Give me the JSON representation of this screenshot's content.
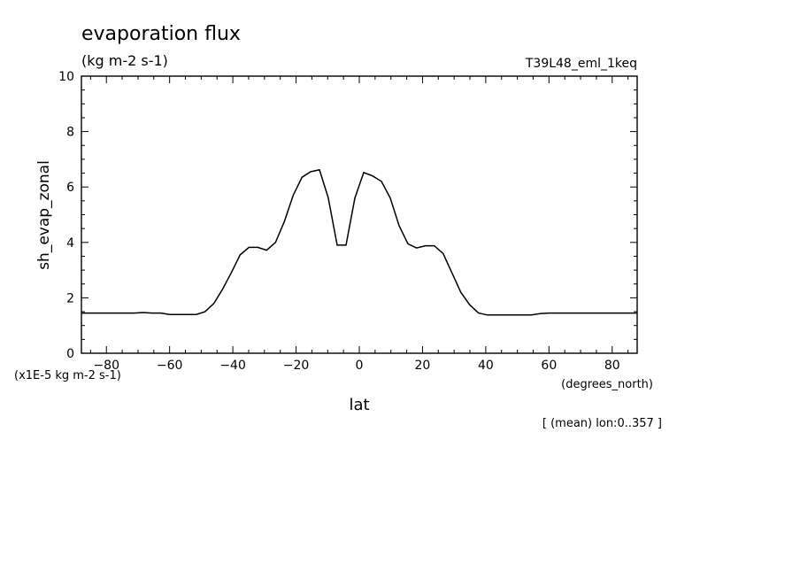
{
  "title": "evaporation flux",
  "subtitle": "(kg m-2 s-1)",
  "run_label": "T39L48_eml_1keq",
  "footnote": "[ (mean) lon:0..357 ]",
  "chart_data": {
    "type": "line",
    "xlabel": "lat",
    "xunits": "(degrees_north)",
    "ylabel": "sh_evap_zonal",
    "yscale_label": "(x1E-5 kg m-2 s-1)",
    "xlim": [
      -87.9,
      87.9
    ],
    "ylim": [
      0,
      10
    ],
    "xticks": [
      -80,
      -60,
      -40,
      -20,
      0,
      20,
      40,
      60,
      80
    ],
    "yticks": [
      0,
      2,
      4,
      6,
      8,
      10
    ],
    "grid": false,
    "x": [
      -87.9,
      -85.1,
      -82.3,
      -79.5,
      -76.7,
      -73.9,
      -71.2,
      -68.4,
      -65.6,
      -62.8,
      -60.0,
      -57.2,
      -54.4,
      -51.6,
      -48.8,
      -46.0,
      -43.3,
      -40.5,
      -37.7,
      -34.9,
      -32.1,
      -29.3,
      -26.5,
      -23.7,
      -20.9,
      -18.1,
      -15.4,
      -12.6,
      -9.8,
      -7.0,
      -4.2,
      -1.4,
      1.4,
      4.2,
      7.0,
      9.8,
      12.6,
      15.4,
      18.1,
      20.9,
      23.7,
      26.5,
      29.3,
      32.1,
      34.9,
      37.7,
      40.5,
      43.3,
      46.0,
      48.8,
      51.6,
      54.4,
      57.2,
      60.0,
      62.8,
      65.6,
      68.4,
      71.2,
      73.9,
      76.7,
      79.5,
      82.3,
      85.1,
      87.9
    ],
    "values": [
      1.45,
      1.45,
      1.45,
      1.45,
      1.45,
      1.45,
      1.45,
      1.47,
      1.45,
      1.45,
      1.4,
      1.4,
      1.4,
      1.4,
      1.5,
      1.8,
      2.3,
      2.9,
      3.55,
      3.82,
      3.82,
      3.72,
      4.0,
      4.75,
      5.7,
      6.35,
      6.55,
      6.62,
      5.6,
      3.9,
      3.9,
      5.6,
      6.52,
      6.4,
      6.2,
      5.6,
      4.6,
      3.95,
      3.8,
      3.88,
      3.88,
      3.6,
      2.9,
      2.2,
      1.75,
      1.45,
      1.38,
      1.38,
      1.38,
      1.38,
      1.38,
      1.38,
      1.43,
      1.45,
      1.45,
      1.45,
      1.45,
      1.45,
      1.45,
      1.45,
      1.45,
      1.45,
      1.45,
      1.45
    ]
  }
}
